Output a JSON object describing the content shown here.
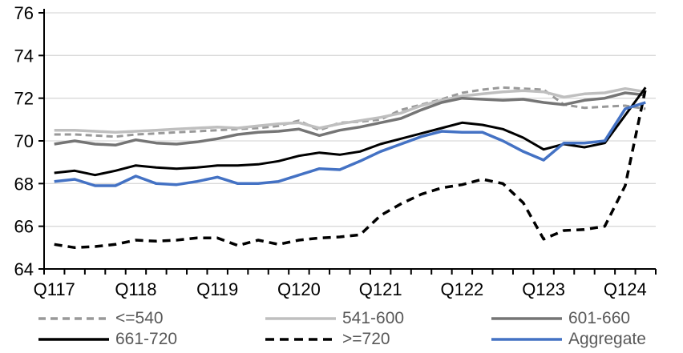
{
  "chart_data": {
    "type": "line",
    "title": "",
    "y_axis": {
      "min": 64,
      "max": 76,
      "step": 2,
      "ticks": [
        64,
        66,
        68,
        70,
        72,
        74,
        76
      ],
      "grid": true
    },
    "x_axis": {
      "visible_tick_labels": [
        "Q117",
        "Q118",
        "Q119",
        "Q120",
        "Q121",
        "Q122",
        "Q123",
        "Q124"
      ],
      "label_category_indices": [
        0,
        4,
        8,
        12,
        16,
        20,
        24,
        28
      ]
    },
    "categories": [
      "Q117",
      "Q217",
      "Q317",
      "Q417",
      "Q118",
      "Q218",
      "Q318",
      "Q418",
      "Q119",
      "Q219",
      "Q319",
      "Q419",
      "Q120",
      "Q220",
      "Q320",
      "Q420",
      "Q121",
      "Q221",
      "Q321",
      "Q421",
      "Q122",
      "Q222",
      "Q322",
      "Q422",
      "Q123",
      "Q223",
      "Q323",
      "Q423",
      "Q124",
      "Q224"
    ],
    "series": [
      {
        "name": "<=540",
        "color": "#999999",
        "dash": "8 5",
        "width": 3,
        "values": [
          70.3,
          70.3,
          70.25,
          70.2,
          70.3,
          70.35,
          70.4,
          70.45,
          70.5,
          70.55,
          70.6,
          70.7,
          70.95,
          70.5,
          70.85,
          70.9,
          71.0,
          71.45,
          71.7,
          71.95,
          72.25,
          72.4,
          72.5,
          72.45,
          72.4,
          71.7,
          71.55,
          71.6,
          71.65,
          71.5
        ]
      },
      {
        "name": "541-600",
        "color": "#BFBFBF",
        "dash": null,
        "width": 3.5,
        "values": [
          70.5,
          70.5,
          70.45,
          70.4,
          70.45,
          70.5,
          70.55,
          70.6,
          70.65,
          70.6,
          70.7,
          70.8,
          70.85,
          70.6,
          70.8,
          70.95,
          71.1,
          71.3,
          71.65,
          71.9,
          72.1,
          72.2,
          72.3,
          72.35,
          72.3,
          72.05,
          72.2,
          72.25,
          72.45,
          72.3
        ]
      },
      {
        "name": "601-660",
        "color": "#757575",
        "dash": null,
        "width": 3.5,
        "values": [
          69.85,
          70.0,
          69.85,
          69.8,
          70.05,
          69.9,
          69.85,
          69.95,
          70.1,
          70.3,
          70.4,
          70.45,
          70.55,
          70.25,
          70.5,
          70.65,
          70.85,
          71.05,
          71.45,
          71.8,
          72.0,
          71.95,
          71.9,
          71.95,
          71.8,
          71.7,
          71.9,
          72.0,
          72.25,
          72.15
        ]
      },
      {
        "name": "661-720",
        "color": "#000000",
        "dash": null,
        "width": 3,
        "values": [
          68.5,
          68.6,
          68.4,
          68.6,
          68.85,
          68.75,
          68.7,
          68.75,
          68.85,
          68.85,
          68.9,
          69.05,
          69.3,
          69.45,
          69.35,
          69.5,
          69.85,
          70.1,
          70.35,
          70.6,
          70.85,
          70.75,
          70.55,
          70.15,
          69.6,
          69.85,
          69.7,
          69.9,
          71.2,
          72.5
        ]
      },
      {
        "name": ">=720",
        "color": "#000000",
        "dash": "10 7",
        "width": 3.5,
        "values": [
          65.15,
          65.0,
          65.05,
          65.15,
          65.35,
          65.3,
          65.35,
          65.45,
          65.45,
          65.1,
          65.35,
          65.15,
          65.35,
          65.45,
          65.5,
          65.6,
          66.5,
          67.05,
          67.5,
          67.8,
          67.95,
          68.2,
          68.0,
          67.1,
          65.4,
          65.8,
          65.85,
          66.0,
          67.9,
          72.45
        ]
      },
      {
        "name": "Aggregate",
        "color": "#4472C4",
        "dash": null,
        "width": 3.5,
        "values": [
          68.1,
          68.2,
          67.9,
          67.9,
          68.35,
          68.0,
          67.95,
          68.1,
          68.3,
          68.0,
          68.0,
          68.1,
          68.4,
          68.7,
          68.65,
          69.05,
          69.5,
          69.85,
          70.2,
          70.45,
          70.4,
          70.4,
          70.0,
          69.5,
          69.1,
          69.9,
          69.9,
          70.0,
          71.5,
          71.8
        ]
      }
    ],
    "legend": {
      "items": [
        {
          "label": "<=540",
          "series_index": 0,
          "row": 0,
          "col": 0
        },
        {
          "label": "541-600",
          "series_index": 1,
          "row": 0,
          "col": 1
        },
        {
          "label": "601-660",
          "series_index": 2,
          "row": 0,
          "col": 2
        },
        {
          "label": "661-720",
          "series_index": 3,
          "row": 1,
          "col": 0
        },
        {
          "label": ">=720",
          "series_index": 4,
          "row": 1,
          "col": 1
        },
        {
          "label": "Aggregate",
          "series_index": 5,
          "row": 1,
          "col": 2
        }
      ],
      "position": "bottom"
    },
    "colors": {
      "gridline": "#D9D9D9",
      "axis": "#000000",
      "axis_label_text": "#000000",
      "legend_text": "#595959"
    }
  }
}
